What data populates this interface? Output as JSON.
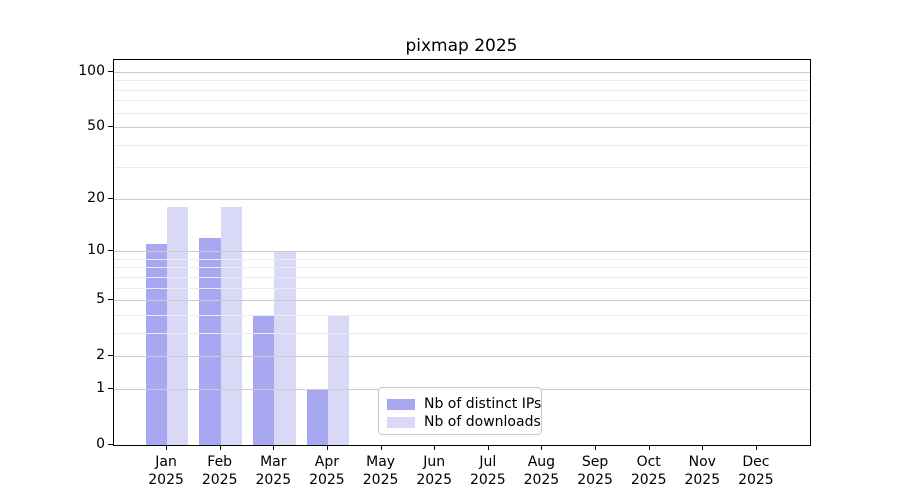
{
  "title": "pixmap 2025",
  "chart_data": {
    "type": "bar",
    "title": "pixmap 2025",
    "x_categories": [
      "Jan",
      "Feb",
      "Mar",
      "Apr",
      "May",
      "Jun",
      "Jul",
      "Aug",
      "Sep",
      "Oct",
      "Nov",
      "Dec"
    ],
    "x_year": "2025",
    "series": [
      {
        "name": "Nb of distinct IPs",
        "color": "#a7a7f2",
        "values": [
          11,
          12,
          4,
          1,
          0,
          0,
          0,
          0,
          0,
          0,
          0,
          0
        ]
      },
      {
        "name": "Nb of downloads",
        "color": "#d9d9f7",
        "values": [
          18,
          18,
          10,
          4,
          0,
          0,
          0,
          0,
          0,
          0,
          0,
          0
        ]
      }
    ],
    "y_scale": "log10(1+y)",
    "y_axis": {
      "major_ticks": [
        0,
        1,
        2,
        5,
        10,
        20,
        50,
        100
      ],
      "minor_gridlines": [
        3,
        4,
        6,
        7,
        8,
        9,
        30,
        40,
        60,
        70,
        80,
        90
      ],
      "ylim": [
        0,
        116
      ]
    },
    "grid": true,
    "legend": {
      "position": "lower-center-inside"
    },
    "colors": {
      "major_grid": "#cccccc",
      "minor_grid": "#ebebeb",
      "axis": "#000000",
      "background": "#ffffff"
    }
  }
}
